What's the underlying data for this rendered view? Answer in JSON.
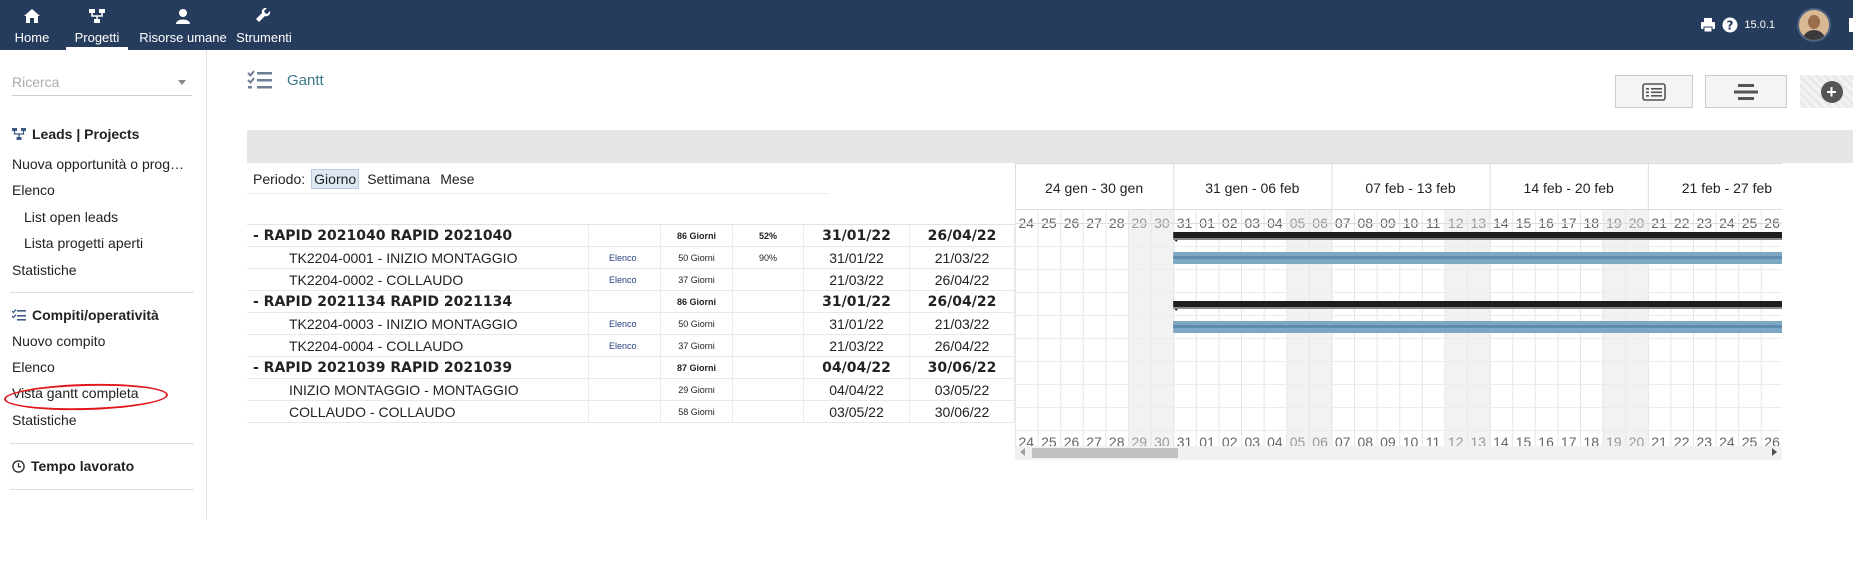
{
  "topbar": {
    "nav": [
      {
        "label": "Home",
        "icon": "home-icon"
      },
      {
        "label": "Progetti",
        "icon": "project-tree-icon",
        "active": true
      },
      {
        "label": "Risorse umane",
        "icon": "user-icon"
      },
      {
        "label": "Strumenti",
        "icon": "wrench-icon"
      }
    ],
    "version": "15.0.1"
  },
  "sidebar": {
    "search_placeholder": "Ricerca",
    "section_leads": {
      "title": "Leads | Projects",
      "items": [
        "Nuova opportunità o prog…",
        "Elenco",
        "List open leads",
        "Lista progetti aperti",
        "Statistiche"
      ]
    },
    "section_tasks": {
      "title": "Compiti/operatività",
      "items": [
        "Nuovo compito",
        "Elenco",
        "Vista gantt completa",
        "Statistiche"
      ]
    },
    "section_time": {
      "title": "Tempo lavorato"
    }
  },
  "main": {
    "title": "Gantt",
    "period": {
      "label": "Periodo:",
      "options": [
        "Giorno",
        "Settimana",
        "Mese"
      ],
      "selected": "Giorno"
    }
  },
  "tasks": [
    {
      "name": "- RAPID 2021040 RAPID 2021040",
      "resource": "",
      "duration": "86 Giorni",
      "progress": "52%",
      "start": "31/01/22",
      "end": "26/04/22",
      "parent": true
    },
    {
      "name": "TK2204-0001 - INIZIO MONTAGGIO",
      "resource": "Elenco",
      "duration": "50 Giorni",
      "progress": "90%",
      "start": "31/01/22",
      "end": "21/03/22",
      "parent": false
    },
    {
      "name": "TK2204-0002 - COLLAUDO",
      "resource": "Elenco",
      "duration": "37 Giorni",
      "progress": "",
      "start": "21/03/22",
      "end": "26/04/22",
      "parent": false
    },
    {
      "name": "- RAPID 2021134 RAPID 2021134",
      "resource": "",
      "duration": "86 Giorni",
      "progress": "",
      "start": "31/01/22",
      "end": "26/04/22",
      "parent": true
    },
    {
      "name": "TK2204-0003 - INIZIO MONTAGGIO",
      "resource": "Elenco",
      "duration": "50 Giorni",
      "progress": "",
      "start": "31/01/22",
      "end": "21/03/22",
      "parent": false
    },
    {
      "name": "TK2204-0004 - COLLAUDO",
      "resource": "Elenco",
      "duration": "37 Giorni",
      "progress": "",
      "start": "21/03/22",
      "end": "26/04/22",
      "parent": false
    },
    {
      "name": "- RAPID 2021039 RAPID 2021039",
      "resource": "",
      "duration": "87 Giorni",
      "progress": "",
      "start": "04/04/22",
      "end": "30/06/22",
      "parent": true
    },
    {
      "name": "INIZIO MONTAGGIO - MONTAGGIO",
      "resource": "",
      "duration": "29 Giorni",
      "progress": "",
      "start": "04/04/22",
      "end": "03/05/22",
      "parent": false
    },
    {
      "name": "COLLAUDO - COLLAUDO",
      "resource": "",
      "duration": "58 Giorni",
      "progress": "",
      "start": "03/05/22",
      "end": "30/06/22",
      "parent": false
    }
  ],
  "gantt": {
    "weeks": [
      "24 gen - 30 gen",
      "31 gen - 06 feb",
      "07 feb - 13 feb",
      "14 feb - 20 feb",
      "21 feb - 27 feb"
    ],
    "days": [
      "24",
      "25",
      "26",
      "27",
      "28",
      "29",
      "30",
      "31",
      "01",
      "02",
      "03",
      "04",
      "05",
      "06",
      "07",
      "08",
      "09",
      "10",
      "11",
      "12",
      "13",
      "14",
      "15",
      "16",
      "17",
      "18",
      "19",
      "20",
      "21",
      "22",
      "23",
      "24",
      "25",
      "26"
    ],
    "weekend_days": [
      5,
      6,
      12,
      13,
      19,
      20,
      26,
      27
    ],
    "colors": {
      "summary_bar": "#1e1e1e",
      "task_bar": "#7ea7c4",
      "weekend": "#f2f2f2",
      "grid": "#e6e6e6"
    }
  },
  "chart_data": {
    "type": "gantt",
    "x_unit": "days",
    "visible_range": [
      "24/01/22",
      "26/02/22"
    ],
    "bars": [
      {
        "row": 0,
        "kind": "summary",
        "start": "31/01/22",
        "end": "26/04/22"
      },
      {
        "row": 1,
        "kind": "task",
        "start": "31/01/22",
        "end": "21/03/22"
      },
      {
        "row": 3,
        "kind": "summary",
        "start": "31/01/22",
        "end": "26/04/22"
      },
      {
        "row": 4,
        "kind": "task",
        "start": "31/01/22",
        "end": "21/03/22"
      }
    ]
  }
}
